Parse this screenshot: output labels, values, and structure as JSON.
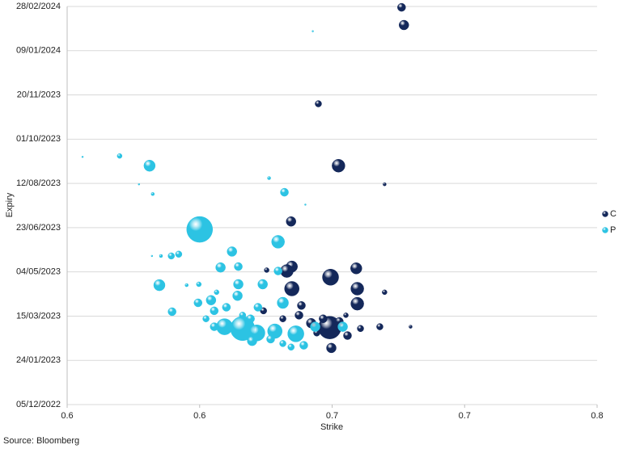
{
  "chart_data": {
    "type": "bubble",
    "x_label": "Strike",
    "y_label": "Expiry",
    "source": "Source: Bloomberg",
    "xlim": [
      0.55,
      0.75
    ],
    "xticks": [
      {
        "value": 0.55,
        "label": "0.6"
      },
      {
        "value": 0.6,
        "label": "0.6"
      },
      {
        "value": 0.65,
        "label": "0.7"
      },
      {
        "value": 0.7,
        "label": "0.7"
      },
      {
        "value": 0.75,
        "label": "0.8"
      }
    ],
    "ylim": [
      44900,
      45350
    ],
    "yticks": [
      {
        "value": 44900,
        "label": "05/12/2022"
      },
      {
        "value": 44950,
        "label": "24/01/2023"
      },
      {
        "value": 45000,
        "label": "15/03/2023"
      },
      {
        "value": 45050,
        "label": "04/05/2023"
      },
      {
        "value": 45100,
        "label": "23/06/2023"
      },
      {
        "value": 45150,
        "label": "12/08/2023"
      },
      {
        "value": 45200,
        "label": "01/10/2023"
      },
      {
        "value": 45250,
        "label": "20/11/2023"
      },
      {
        "value": 45300,
        "label": "09/01/2024"
      },
      {
        "value": 45350,
        "label": "28/02/2024"
      }
    ],
    "grid": true,
    "legend": "right",
    "series": [
      {
        "name": "C",
        "color": "#14285a",
        "x": [
          0.6762,
          0.6771,
          0.6448,
          0.6524,
          0.6698,
          0.6345,
          0.6494,
          0.6591,
          0.6348,
          0.6329,
          0.6348,
          0.6595,
          0.6698,
          0.6595,
          0.6384,
          0.6491,
          0.6421,
          0.6497,
          0.6558,
          0.6466,
          0.6527,
          0.6607,
          0.668,
          0.6796,
          0.6375,
          0.6241,
          0.6314,
          0.6253,
          0.6552,
          0.6442
        ],
        "values": [
          45349,
          45329,
          45240,
          45170,
          45149,
          45107,
          45044,
          45054,
          45056,
          45051,
          45031,
          45031,
          45027,
          45014,
          45012,
          44987,
          44992,
          44964,
          44978,
          44997,
          44994,
          44986,
          44988,
          44988,
          45001,
          45006,
          44997,
          45052,
          45001,
          44981
        ],
        "sizes": [
          5,
          6,
          4,
          8,
          2,
          6,
          10,
          7,
          7,
          8,
          9,
          8,
          3,
          8,
          5,
          14,
          6,
          6,
          5,
          5,
          5,
          4,
          4,
          2,
          5,
          4,
          4,
          3,
          3,
          4
        ]
      },
      {
        "name": "P",
        "color": "#2cc3e3",
        "x": [
          0.5558,
          0.5698,
          0.5811,
          0.5771,
          0.5823,
          0.6427,
          0.6262,
          0.632,
          0.6399,
          0.6,
          0.6296,
          0.6122,
          0.5921,
          0.5893,
          0.5854,
          0.582,
          0.6079,
          0.6146,
          0.6296,
          0.5848,
          0.5951,
          0.5997,
          0.6146,
          0.6238,
          0.5896,
          0.6043,
          0.6143,
          0.5994,
          0.6314,
          0.6101,
          0.6055,
          0.622,
          0.6094,
          0.6162,
          0.6216,
          0.6284,
          0.6363,
          0.6198,
          0.6268,
          0.6314,
          0.6345,
          0.6393,
          0.6055,
          0.6024,
          0.654,
          0.6436,
          0.6162,
          0.6192,
          0.6064
        ],
        "values": [
          45180,
          45181,
          45170,
          45149,
          45138,
          45322,
          45156,
          45140,
          45126,
          45098,
          45084,
          45073,
          45070,
          45068,
          45068,
          45068,
          45055,
          45056,
          45051,
          45035,
          45035,
          45036,
          45036,
          45036,
          45005,
          45018,
          45023,
          45015,
          45015,
          45010,
          45006,
          45010,
          44988,
          44986,
          44981,
          44983,
          44980,
          44972,
          44974,
          44969,
          44965,
          44967,
          44988,
          44997,
          44988,
          44988,
          45001,
          44997,
          45027
        ],
        "sizes": [
          1,
          3,
          7,
          1,
          2,
          1,
          2,
          5,
          1,
          16,
          8,
          6,
          4,
          4,
          2,
          1,
          6,
          5,
          5,
          7,
          2,
          3,
          6,
          6,
          5,
          6,
          6,
          5,
          7,
          5,
          5,
          5,
          10,
          15,
          10,
          9,
          10,
          6,
          5,
          4,
          4,
          5,
          5,
          4,
          6,
          6,
          4,
          5,
          3
        ]
      }
    ]
  }
}
